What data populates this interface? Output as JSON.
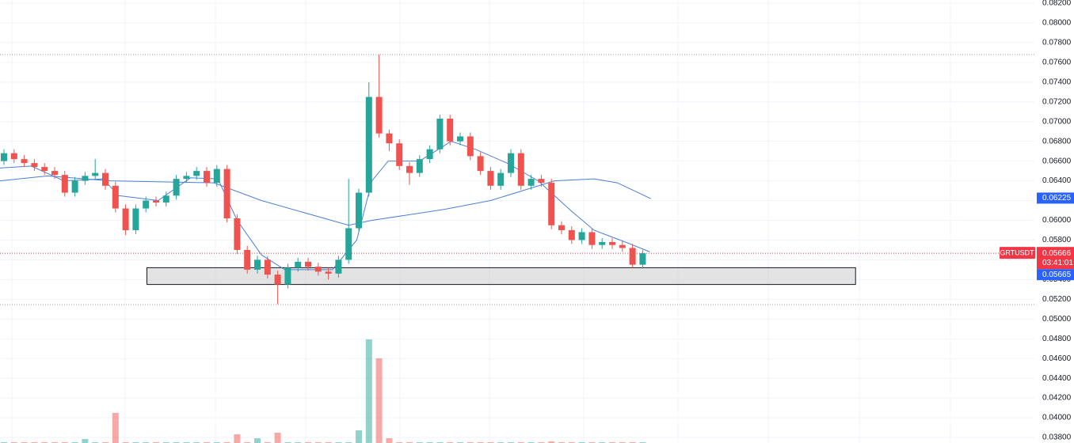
{
  "chart_data": {
    "type": "candlestick",
    "symbol": "GRTUSDT",
    "countdown": "03:41:01",
    "last_price": {
      "value": 0.05666,
      "label": "0.05666"
    },
    "bid_label": "0.05665",
    "ma_label": {
      "value": 0.06225,
      "label": "0.06225"
    },
    "up_color": "#26a69a",
    "down_color": "#ef5350",
    "ylim": [
      0.03744,
      0.08232
    ],
    "yticks": [
      {
        "value": 0.082,
        "label": "0.08200"
      },
      {
        "value": 0.08,
        "label": "0.08000"
      },
      {
        "value": 0.078,
        "label": "0.07800"
      },
      {
        "value": 0.076,
        "label": "0.07600"
      },
      {
        "value": 0.074,
        "label": "0.07400"
      },
      {
        "value": 0.072,
        "label": "0.07200"
      },
      {
        "value": 0.07,
        "label": "0.07000"
      },
      {
        "value": 0.068,
        "label": "0.06800"
      },
      {
        "value": 0.066,
        "label": "0.06600"
      },
      {
        "value": 0.064,
        "label": "0.06400"
      },
      {
        "value": 0.062,
        "label": "0.06200"
      },
      {
        "value": 0.06,
        "label": "0.06000"
      },
      {
        "value": 0.058,
        "label": "0.05800"
      },
      {
        "value": 0.056,
        "label": "0.05600"
      },
      {
        "value": 0.054,
        "label": "0.05400"
      },
      {
        "value": 0.052,
        "label": "0.05200"
      },
      {
        "value": 0.05,
        "label": "0.05000"
      },
      {
        "value": 0.048,
        "label": "0.04800"
      },
      {
        "value": 0.046,
        "label": "0.04600"
      },
      {
        "value": 0.044,
        "label": "0.04400"
      },
      {
        "value": 0.042,
        "label": "0.04200"
      },
      {
        "value": 0.04,
        "label": "0.04000"
      },
      {
        "value": 0.038,
        "label": "0.03800"
      }
    ],
    "grid": true,
    "open": [
      0.066,
      0.0668,
      0.0662,
      0.0658,
      0.0654,
      0.065,
      0.0646,
      0.0628,
      0.064,
      0.0645,
      0.0648,
      0.0635,
      0.0612,
      0.059,
      0.0612,
      0.062,
      0.0618,
      0.0625,
      0.0642,
      0.0645,
      0.065,
      0.0638,
      0.0652,
      0.0602,
      0.057,
      0.055,
      0.056,
      0.0545,
      0.0535,
      0.0552,
      0.0558,
      0.0553,
      0.0548,
      0.0546,
      0.056,
      0.0592,
      0.0628,
      0.0725,
      0.0688,
      0.0678,
      0.0655,
      0.0648,
      0.0662,
      0.0672,
      0.0703,
      0.068,
      0.0685,
      0.0665,
      0.065,
      0.0635,
      0.0648,
      0.0668,
      0.0635,
      0.0642,
      0.0638,
      0.0595,
      0.059,
      0.058,
      0.0588,
      0.0575,
      0.0578,
      0.0575,
      0.0572,
      0.0555
    ],
    "high": [
      0.0672,
      0.0672,
      0.0666,
      0.0662,
      0.0658,
      0.0654,
      0.065,
      0.0644,
      0.0649,
      0.0662,
      0.0652,
      0.0639,
      0.0616,
      0.0616,
      0.0624,
      0.0624,
      0.0629,
      0.0646,
      0.0649,
      0.0654,
      0.0654,
      0.0656,
      0.0656,
      0.0606,
      0.0574,
      0.0564,
      0.0564,
      0.0549,
      0.0556,
      0.0562,
      0.0562,
      0.0557,
      0.0552,
      0.0564,
      0.0642,
      0.0632,
      0.074,
      0.0768,
      0.0692,
      0.0682,
      0.0659,
      0.0666,
      0.0676,
      0.0707,
      0.0707,
      0.0689,
      0.0689,
      0.0669,
      0.0654,
      0.0652,
      0.0672,
      0.0672,
      0.0646,
      0.0646,
      0.0642,
      0.0599,
      0.0594,
      0.0592,
      0.0592,
      0.0582,
      0.0582,
      0.0579,
      0.0576,
      0.057
    ],
    "low": [
      0.0656,
      0.0658,
      0.0654,
      0.065,
      0.0646,
      0.0642,
      0.0624,
      0.0624,
      0.0636,
      0.0641,
      0.0631,
      0.0608,
      0.0585,
      0.0586,
      0.0608,
      0.0614,
      0.0614,
      0.0621,
      0.0638,
      0.0641,
      0.0634,
      0.0634,
      0.0598,
      0.0566,
      0.0546,
      0.0546,
      0.0541,
      0.0515,
      0.0531,
      0.0548,
      0.0549,
      0.0544,
      0.054,
      0.0542,
      0.0556,
      0.0588,
      0.0624,
      0.0684,
      0.067,
      0.0651,
      0.0636,
      0.0644,
      0.0658,
      0.0668,
      0.0676,
      0.0676,
      0.0661,
      0.0646,
      0.0631,
      0.0631,
      0.0644,
      0.0631,
      0.0631,
      0.0634,
      0.0591,
      0.0586,
      0.0576,
      0.0576,
      0.0571,
      0.0571,
      0.0571,
      0.0568,
      0.0552,
      0.0551
    ],
    "close": [
      0.0668,
      0.0662,
      0.0658,
      0.0654,
      0.065,
      0.0646,
      0.0628,
      0.064,
      0.0645,
      0.0648,
      0.0635,
      0.0612,
      0.059,
      0.0612,
      0.062,
      0.0618,
      0.0625,
      0.0642,
      0.0645,
      0.065,
      0.0638,
      0.0652,
      0.0602,
      0.057,
      0.055,
      0.056,
      0.0545,
      0.0535,
      0.0552,
      0.0558,
      0.0553,
      0.0548,
      0.0546,
      0.056,
      0.0592,
      0.0628,
      0.0725,
      0.0688,
      0.0678,
      0.0655,
      0.0648,
      0.0662,
      0.0672,
      0.0703,
      0.068,
      0.0685,
      0.0665,
      0.065,
      0.0635,
      0.0648,
      0.0668,
      0.0635,
      0.0642,
      0.0638,
      0.0595,
      0.059,
      0.058,
      0.0588,
      0.0575,
      0.0578,
      0.0575,
      0.0572,
      0.0555,
      0.05666
    ],
    "volume": [
      1,
      1,
      1,
      1,
      1,
      1,
      1,
      1,
      5,
      1,
      1,
      38,
      1,
      1,
      1,
      1,
      1,
      1,
      1,
      1,
      1,
      1,
      1,
      11,
      1,
      6,
      1,
      13,
      1,
      1,
      1,
      1,
      1,
      1,
      1,
      16,
      131,
      107,
      6,
      1,
      1,
      1,
      1,
      1,
      1,
      1,
      1,
      1,
      1,
      1,
      1,
      1,
      1,
      1,
      2,
      1,
      1,
      1,
      1,
      1,
      1,
      1,
      1,
      1
    ],
    "volume_lim": [
      0,
      140
    ],
    "overlays": [
      {
        "color": "#4a7fd6",
        "x": [
          -0.4,
          2.7,
          5.9,
          9.8,
          11.3,
          15.2,
          18.4,
          21.1,
          23.0,
          25.4,
          27.7,
          32.4,
          34.8,
          36.3,
          37.9,
          41.0,
          44.1,
          46.5,
          49.6,
          52.7,
          55.9,
          58.2,
          61.3,
          63.7
        ],
        "values": [
          0.0653,
          0.0655,
          0.064,
          0.0642,
          0.0625,
          0.062,
          0.0643,
          0.0642,
          0.06,
          0.0565,
          0.055,
          0.055,
          0.058,
          0.064,
          0.066,
          0.066,
          0.068,
          0.0672,
          0.0658,
          0.064,
          0.061,
          0.059,
          0.0578,
          0.0568
        ]
      },
      {
        "color": "#4a7fd6",
        "x": [
          -0.4,
          4.3,
          10.5,
          20.7,
          25.4,
          34,
          36.3,
          43.4,
          48.0,
          54.3,
          58.2,
          60.5,
          63.8
        ],
        "values": [
          0.064,
          0.0645,
          0.064,
          0.0638,
          0.062,
          0.0595,
          0.06,
          0.0611,
          0.062,
          0.064,
          0.0642,
          0.0638,
          0.0622
        ]
      }
    ],
    "zone": {
      "x": [
        14.1,
        84
      ],
      "top": 0.0552,
      "bottom": 0.0535
    },
    "price_lines": [
      {
        "value": 0.07679,
        "color": "#9598a1"
      },
      {
        "value": 0.05146,
        "color": "#9598a1"
      },
      {
        "value": 0.05666,
        "color": "#f23645"
      }
    ]
  }
}
